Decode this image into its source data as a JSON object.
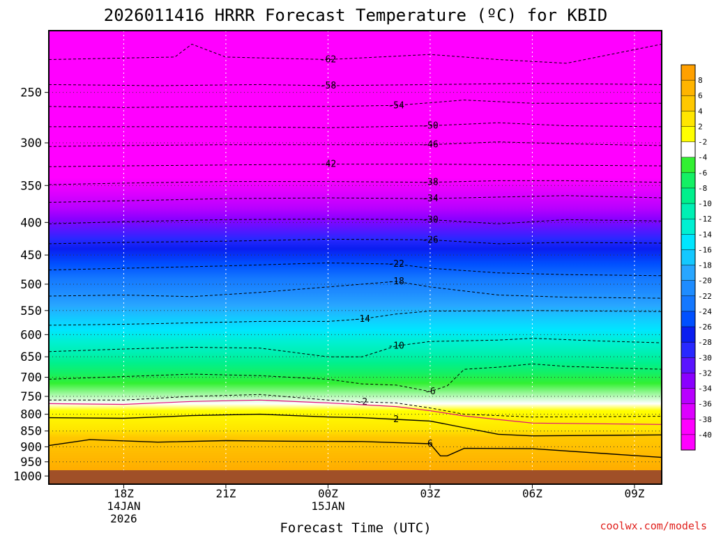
{
  "chart_data": {
    "type": "heatmap",
    "title": "2026011416 HRRR Forecast Temperature (ºC) for KBID",
    "xlabel": "Forecast Time (UTC)",
    "ylabel": "",
    "credit": "coolwx.com/models",
    "y_axis": {
      "label_values": [
        250,
        300,
        350,
        400,
        450,
        500,
        550,
        600,
        650,
        700,
        750,
        800,
        850,
        900,
        950,
        1000
      ],
      "label_texts": [
        "250",
        "300",
        "350",
        "400",
        "450",
        "500",
        "550",
        "600",
        "650",
        "700",
        "750",
        "800",
        "850",
        "900",
        "950",
        "1000"
      ],
      "range_hpa": [
        200,
        1030
      ],
      "inverted": true
    },
    "x_axis": {
      "range_hours": [
        15.8,
        33.8
      ],
      "ticks": [
        {
          "hour": 18,
          "lines": [
            "18Z",
            "14JAN",
            "2026"
          ]
        },
        {
          "hour": 21,
          "lines": [
            "21Z"
          ]
        },
        {
          "hour": 24,
          "lines": [
            "00Z",
            "15JAN"
          ]
        },
        {
          "hour": 27,
          "lines": [
            "03Z"
          ]
        },
        {
          "hour": 30,
          "lines": [
            "06Z"
          ]
        },
        {
          "hour": 33,
          "lines": [
            "09Z"
          ]
        }
      ]
    },
    "temperature_bands": [
      {
        "level_hpa": 200,
        "temp_c": -64,
        "color": "#ff00ff"
      },
      {
        "level_hpa": 340,
        "temp_c": -38,
        "color": "#ff00ff"
      },
      {
        "level_hpa": 360,
        "temp_c": -36,
        "color": "#dd00ff"
      },
      {
        "level_hpa": 380,
        "temp_c": -34,
        "color": "#b800ff"
      },
      {
        "level_hpa": 395,
        "temp_c": -32,
        "color": "#8a00ff"
      },
      {
        "level_hpa": 410,
        "temp_c": -30,
        "color": "#5a14ff"
      },
      {
        "level_hpa": 425,
        "temp_c": -28,
        "color": "#2828ff"
      },
      {
        "level_hpa": 440,
        "temp_c": -26,
        "color": "#0a1ef0"
      },
      {
        "level_hpa": 465,
        "temp_c": -24,
        "color": "#0050ff"
      },
      {
        "level_hpa": 490,
        "temp_c": -22,
        "color": "#1478ff"
      },
      {
        "level_hpa": 515,
        "temp_c": -20,
        "color": "#1e8cff"
      },
      {
        "level_hpa": 540,
        "temp_c": -18,
        "color": "#28a6ff"
      },
      {
        "level_hpa": 565,
        "temp_c": -16,
        "color": "#14c8ff"
      },
      {
        "level_hpa": 590,
        "temp_c": -14,
        "color": "#00e6ff"
      },
      {
        "level_hpa": 615,
        "temp_c": -12,
        "color": "#00f0d2"
      },
      {
        "level_hpa": 640,
        "temp_c": -10,
        "color": "#00f0b4"
      },
      {
        "level_hpa": 665,
        "temp_c": -8,
        "color": "#00f08c"
      },
      {
        "level_hpa": 690,
        "temp_c": -6,
        "color": "#14f064"
      },
      {
        "level_hpa": 715,
        "temp_c": -4,
        "color": "#32f032"
      },
      {
        "level_hpa": 770,
        "temp_c": 0,
        "color": "#ffffff"
      },
      {
        "level_hpa": 790,
        "temp_c": 2,
        "color": "#ffff00"
      },
      {
        "level_hpa": 845,
        "temp_c": 4,
        "color": "#ffe600"
      },
      {
        "level_hpa": 870,
        "temp_c": 6,
        "color": "#ffc800"
      },
      {
        "level_hpa": 910,
        "temp_c": 7,
        "color": "#ffbe00"
      },
      {
        "level_hpa": 990,
        "temp_c": 8,
        "color": "#ffaa00"
      },
      {
        "level_hpa": 1000,
        "temp_c": 8,
        "color": "#a05028"
      }
    ],
    "contours": [
      {
        "label": "-62",
        "points": [
          [
            15.8,
            222
          ],
          [
            19.5,
            220
          ],
          [
            20.0,
            210
          ],
          [
            21.0,
            220
          ],
          [
            24.0,
            222
          ],
          [
            27.0,
            218
          ],
          [
            29.0,
            222
          ],
          [
            31.0,
            225
          ],
          [
            33.8,
            210
          ]
        ]
      },
      {
        "label": "-58",
        "points": [
          [
            15.8,
            243
          ],
          [
            19.0,
            244
          ],
          [
            22.0,
            243
          ],
          [
            24.0,
            244
          ],
          [
            27.0,
            243
          ],
          [
            30.0,
            242
          ],
          [
            33.8,
            243
          ]
        ]
      },
      {
        "label": "-54",
        "points": [
          [
            15.8,
            263
          ],
          [
            18.0,
            264
          ],
          [
            21.0,
            263
          ],
          [
            24.0,
            263
          ],
          [
            26.0,
            262
          ],
          [
            28.0,
            257
          ],
          [
            30.0,
            260
          ],
          [
            33.8,
            260
          ]
        ]
      },
      {
        "label": "-50",
        "points": [
          [
            15.8,
            283
          ],
          [
            18.0,
            283
          ],
          [
            21.0,
            283
          ],
          [
            24.0,
            284
          ],
          [
            27.0,
            282
          ],
          [
            29.0,
            279
          ],
          [
            31.0,
            282
          ],
          [
            33.8,
            283
          ]
        ]
      },
      {
        "label": "-46",
        "points": [
          [
            15.8,
            304
          ],
          [
            18.0,
            303
          ],
          [
            21.0,
            302
          ],
          [
            24.0,
            302
          ],
          [
            27.0,
            302
          ],
          [
            29.0,
            299
          ],
          [
            31.0,
            301
          ],
          [
            33.8,
            303
          ]
        ]
      },
      {
        "label": "-42",
        "points": [
          [
            15.8,
            327
          ],
          [
            18.0,
            326
          ],
          [
            21.0,
            325
          ],
          [
            24.0,
            324
          ],
          [
            27.0,
            324
          ],
          [
            30.0,
            325
          ],
          [
            33.8,
            326
          ]
        ]
      },
      {
        "label": "-38",
        "points": [
          [
            15.8,
            349
          ],
          [
            18.0,
            347
          ],
          [
            21.0,
            345
          ],
          [
            24.0,
            345
          ],
          [
            27.0,
            346
          ],
          [
            29.0,
            344
          ],
          [
            31.0,
            344
          ],
          [
            33.8,
            346
          ]
        ]
      },
      {
        "label": "-34",
        "points": [
          [
            15.8,
            372
          ],
          [
            18.0,
            370
          ],
          [
            21.0,
            367
          ],
          [
            24.0,
            366
          ],
          [
            27.0,
            367
          ],
          [
            29.0,
            365
          ],
          [
            31.0,
            363
          ],
          [
            33.8,
            366
          ]
        ]
      },
      {
        "label": "-30",
        "points": [
          [
            15.8,
            402
          ],
          [
            18.0,
            399
          ],
          [
            21.0,
            396
          ],
          [
            24.0,
            395
          ],
          [
            27.0,
            396
          ],
          [
            29.0,
            402
          ],
          [
            31.0,
            396
          ],
          [
            33.8,
            398
          ]
        ]
      },
      {
        "label": "-26",
        "points": [
          [
            15.8,
            432
          ],
          [
            18.0,
            430
          ],
          [
            21.0,
            428
          ],
          [
            24.0,
            425
          ],
          [
            27.0,
            426
          ],
          [
            29.0,
            432
          ],
          [
            31.0,
            430
          ],
          [
            33.8,
            431
          ]
        ]
      },
      {
        "label": "-22",
        "points": [
          [
            15.8,
            475
          ],
          [
            18.0,
            472
          ],
          [
            21.0,
            468
          ],
          [
            24.0,
            463
          ],
          [
            26.0,
            465
          ],
          [
            27.0,
            472
          ],
          [
            29.0,
            480
          ],
          [
            31.0,
            483
          ],
          [
            33.8,
            485
          ]
        ]
      },
      {
        "label": "-18",
        "points": [
          [
            15.8,
            522
          ],
          [
            18.0,
            520
          ],
          [
            20.0,
            523
          ],
          [
            22.0,
            515
          ],
          [
            24.0,
            505
          ],
          [
            26.0,
            495
          ],
          [
            27.0,
            505
          ],
          [
            29.0,
            520
          ],
          [
            31.0,
            524
          ],
          [
            33.8,
            526
          ]
        ]
      },
      {
        "label": "-14",
        "points": [
          [
            15.8,
            580
          ],
          [
            18.0,
            578
          ],
          [
            20.0,
            575
          ],
          [
            22.0,
            572
          ],
          [
            24.0,
            572
          ],
          [
            25.0,
            567
          ],
          [
            26.0,
            557
          ],
          [
            27.0,
            551
          ],
          [
            28.0,
            551
          ],
          [
            30.0,
            550
          ],
          [
            33.8,
            552
          ]
        ]
      },
      {
        "label": "-10",
        "points": [
          [
            15.8,
            638
          ],
          [
            18.0,
            632
          ],
          [
            20.0,
            628
          ],
          [
            22.0,
            630
          ],
          [
            24.0,
            650
          ],
          [
            25.0,
            650
          ],
          [
            26.0,
            625
          ],
          [
            27.0,
            615
          ],
          [
            29.0,
            612
          ],
          [
            30.0,
            608
          ],
          [
            32.0,
            614
          ],
          [
            33.8,
            618
          ]
        ]
      },
      {
        "label": "-6",
        "points": [
          [
            15.8,
            705
          ],
          [
            18.0,
            698
          ],
          [
            20.0,
            692
          ],
          [
            22.0,
            696
          ],
          [
            24.0,
            705
          ],
          [
            25.0,
            717
          ],
          [
            26.0,
            720
          ],
          [
            27.0,
            737
          ],
          [
            27.5,
            722
          ],
          [
            28.0,
            680
          ],
          [
            29.0,
            675
          ],
          [
            30.0,
            667
          ],
          [
            31.0,
            673
          ],
          [
            33.8,
            680
          ]
        ]
      },
      {
        "label": "-2",
        "points": [
          [
            15.8,
            760
          ],
          [
            18.0,
            760
          ],
          [
            20.0,
            750
          ],
          [
            22.0,
            745
          ],
          [
            24.0,
            760
          ],
          [
            25.0,
            765
          ],
          [
            26.0,
            768
          ],
          [
            27.0,
            782
          ],
          [
            28.0,
            800
          ],
          [
            30.0,
            808
          ],
          [
            33.8,
            806
          ]
        ]
      },
      {
        "label": "2",
        "points": [
          [
            15.8,
            810
          ],
          [
            18.0,
            812
          ],
          [
            20.0,
            804
          ],
          [
            22.0,
            800
          ],
          [
            24.0,
            808
          ],
          [
            25.0,
            810
          ],
          [
            26.0,
            815
          ],
          [
            27.0,
            820
          ],
          [
            28.0,
            840
          ],
          [
            29.0,
            860
          ],
          [
            30.0,
            865
          ],
          [
            33.8,
            862
          ]
        ]
      },
      {
        "label": "6",
        "points": [
          [
            15.8,
            896
          ],
          [
            17.0,
            877
          ],
          [
            19.0,
            885
          ],
          [
            21.0,
            880
          ],
          [
            23.0,
            882
          ],
          [
            25.0,
            883
          ],
          [
            27.0,
            890
          ],
          [
            27.3,
            930
          ],
          [
            27.5,
            930
          ],
          [
            28.0,
            905
          ],
          [
            30.0,
            906
          ],
          [
            33.8,
            935
          ]
        ]
      }
    ],
    "colorbar": {
      "labels": [
        "8",
        "6",
        "4",
        "2",
        "-2",
        "-4",
        "-6",
        "-8",
        "-10",
        "-12",
        "-14",
        "-16",
        "-18",
        "-20",
        "-22",
        "-24",
        "-26",
        "-28",
        "-30",
        "-32",
        "-34",
        "-36",
        "-38",
        "-40"
      ],
      "colors": [
        "#ffa000",
        "#ffb400",
        "#ffc800",
        "#ffe600",
        "#ffff00",
        "#ffffff",
        "#32f032",
        "#14f064",
        "#00f08c",
        "#00f0b4",
        "#00f0d2",
        "#00e6ff",
        "#14c8ff",
        "#28a6ff",
        "#1e8cff",
        "#1478ff",
        "#0050ff",
        "#0a1ef0",
        "#2828ff",
        "#5a14ff",
        "#8a00ff",
        "#b800ff",
        "#dd00ff",
        "#ff00ff",
        "#ff00ff"
      ]
    }
  }
}
